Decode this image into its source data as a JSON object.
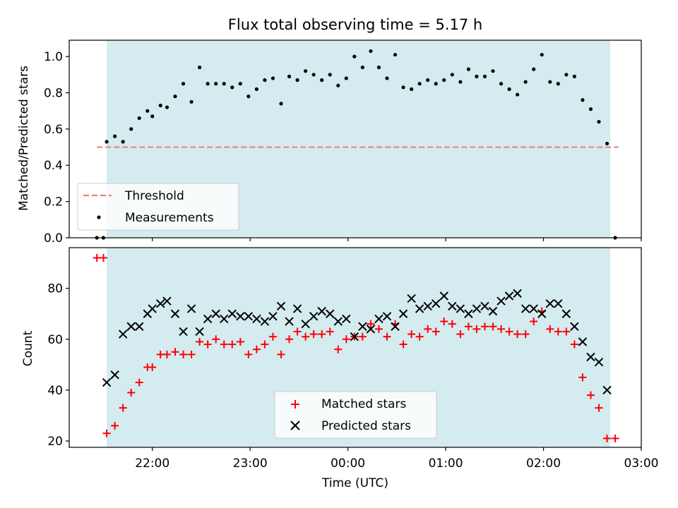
{
  "colors": {
    "band": "#b7dde6",
    "threshold": "#f08080",
    "matched": "#ff0000",
    "predicted": "#000000",
    "measurements": "#000000"
  },
  "chart_data": [
    {
      "type": "scatter",
      "title": "Flux total observing time = 5.17 h",
      "xlabel": "",
      "ylabel": "Matched/Predicted stars",
      "ylim": [
        0.0,
        1.09
      ],
      "yticks": [
        "0.0",
        "0.2",
        "0.4",
        "0.6",
        "0.8",
        "1.0"
      ],
      "xlim": [
        "21:09",
        "03:00"
      ],
      "xtick_labels": [],
      "shaded_band": [
        "21:32",
        "02:41"
      ],
      "legend": {
        "placement": "lower-left",
        "entries": [
          "Threshold",
          "Measurements"
        ]
      },
      "threshold": {
        "name": "Threshold",
        "y": 0.5,
        "x_start": "21:26",
        "x_end": "02:46"
      },
      "series": [
        {
          "name": "Measurements",
          "points": [
            [
              "21:26",
              0.0
            ],
            [
              "21:30",
              0.0
            ],
            [
              "21:32",
              0.53
            ],
            [
              "21:37",
              0.56
            ],
            [
              "21:42",
              0.53
            ],
            [
              "21:47",
              0.6
            ],
            [
              "21:52",
              0.66
            ],
            [
              "21:57",
              0.7
            ],
            [
              "22:00",
              0.67
            ],
            [
              "22:05",
              0.73
            ],
            [
              "22:09",
              0.72
            ],
            [
              "22:14",
              0.78
            ],
            [
              "22:19",
              0.85
            ],
            [
              "22:24",
              0.75
            ],
            [
              "22:29",
              0.94
            ],
            [
              "22:34",
              0.85
            ],
            [
              "22:39",
              0.85
            ],
            [
              "22:44",
              0.85
            ],
            [
              "22:49",
              0.83
            ],
            [
              "22:54",
              0.85
            ],
            [
              "22:59",
              0.78
            ],
            [
              "23:04",
              0.82
            ],
            [
              "23:09",
              0.87
            ],
            [
              "23:14",
              0.88
            ],
            [
              "23:19",
              0.74
            ],
            [
              "23:24",
              0.89
            ],
            [
              "23:29",
              0.87
            ],
            [
              "23:34",
              0.92
            ],
            [
              "23:39",
              0.9
            ],
            [
              "23:44",
              0.87
            ],
            [
              "23:49",
              0.9
            ],
            [
              "23:54",
              0.84
            ],
            [
              "23:59",
              0.88
            ],
            [
              "00:04",
              1.0
            ],
            [
              "00:09",
              0.94
            ],
            [
              "00:14",
              1.03
            ],
            [
              "00:19",
              0.94
            ],
            [
              "00:24",
              0.88
            ],
            [
              "00:29",
              1.01
            ],
            [
              "00:34",
              0.83
            ],
            [
              "00:39",
              0.82
            ],
            [
              "00:44",
              0.85
            ],
            [
              "00:49",
              0.87
            ],
            [
              "00:54",
              0.85
            ],
            [
              "00:59",
              0.87
            ],
            [
              "01:04",
              0.9
            ],
            [
              "01:09",
              0.86
            ],
            [
              "01:14",
              0.93
            ],
            [
              "01:19",
              0.89
            ],
            [
              "01:24",
              0.89
            ],
            [
              "01:29",
              0.92
            ],
            [
              "01:34",
              0.85
            ],
            [
              "01:39",
              0.82
            ],
            [
              "01:44",
              0.79
            ],
            [
              "01:49",
              0.86
            ],
            [
              "01:54",
              0.93
            ],
            [
              "01:59",
              1.01
            ],
            [
              "02:04",
              0.86
            ],
            [
              "02:09",
              0.85
            ],
            [
              "02:14",
              0.9
            ],
            [
              "02:19",
              0.89
            ],
            [
              "02:24",
              0.76
            ],
            [
              "02:29",
              0.71
            ],
            [
              "02:34",
              0.64
            ],
            [
              "02:39",
              0.52
            ],
            [
              "02:44",
              0.0
            ]
          ]
        }
      ]
    },
    {
      "type": "scatter",
      "title": "",
      "xlabel": "Time (UTC)",
      "ylabel": "Count",
      "ylim": [
        17.5,
        96
      ],
      "yticks": [
        "20",
        "40",
        "60",
        "80"
      ],
      "xlim": [
        "21:09",
        "03:00"
      ],
      "xtick_labels": [
        "22:00",
        "23:00",
        "00:00",
        "01:00",
        "02:00",
        "03:00"
      ],
      "shaded_band": [
        "21:32",
        "02:41"
      ],
      "legend": {
        "placement": "lower-center",
        "entries": [
          "Matched stars",
          "Predicted stars"
        ]
      },
      "series": [
        {
          "name": "Matched stars",
          "points": [
            [
              "21:26",
              92
            ],
            [
              "21:30",
              92
            ],
            [
              "21:32",
              23
            ],
            [
              "21:37",
              26
            ],
            [
              "21:42",
              33
            ],
            [
              "21:47",
              39
            ],
            [
              "21:52",
              43
            ],
            [
              "21:57",
              49
            ],
            [
              "22:00",
              49
            ],
            [
              "22:05",
              54
            ],
            [
              "22:09",
              54
            ],
            [
              "22:14",
              55
            ],
            [
              "22:19",
              54
            ],
            [
              "22:24",
              54
            ],
            [
              "22:29",
              59
            ],
            [
              "22:34",
              58
            ],
            [
              "22:39",
              60
            ],
            [
              "22:44",
              58
            ],
            [
              "22:49",
              58
            ],
            [
              "22:54",
              59
            ],
            [
              "22:59",
              54
            ],
            [
              "23:04",
              56
            ],
            [
              "23:09",
              58
            ],
            [
              "23:14",
              61
            ],
            [
              "23:19",
              54
            ],
            [
              "23:24",
              60
            ],
            [
              "23:29",
              63
            ],
            [
              "23:34",
              61
            ],
            [
              "23:39",
              62
            ],
            [
              "23:44",
              62
            ],
            [
              "23:49",
              63
            ],
            [
              "23:54",
              56
            ],
            [
              "23:59",
              60
            ],
            [
              "00:04",
              61
            ],
            [
              "00:09",
              61
            ],
            [
              "00:14",
              66
            ],
            [
              "00:19",
              64
            ],
            [
              "00:24",
              61
            ],
            [
              "00:29",
              66
            ],
            [
              "00:34",
              58
            ],
            [
              "00:39",
              62
            ],
            [
              "00:44",
              61
            ],
            [
              "00:49",
              64
            ],
            [
              "00:54",
              63
            ],
            [
              "00:59",
              67
            ],
            [
              "01:04",
              66
            ],
            [
              "01:09",
              62
            ],
            [
              "01:14",
              65
            ],
            [
              "01:19",
              64
            ],
            [
              "01:24",
              65
            ],
            [
              "01:29",
              65
            ],
            [
              "01:34",
              64
            ],
            [
              "01:39",
              63
            ],
            [
              "01:44",
              62
            ],
            [
              "01:49",
              62
            ],
            [
              "01:54",
              67
            ],
            [
              "01:59",
              71
            ],
            [
              "02:04",
              64
            ],
            [
              "02:09",
              63
            ],
            [
              "02:14",
              63
            ],
            [
              "02:19",
              58
            ],
            [
              "02:24",
              45
            ],
            [
              "02:29",
              38
            ],
            [
              "02:34",
              33
            ],
            [
              "02:39",
              21
            ],
            [
              "02:44",
              21
            ]
          ]
        },
        {
          "name": "Predicted stars",
          "points": [
            [
              "21:32",
              43
            ],
            [
              "21:37",
              46
            ],
            [
              "21:42",
              62
            ],
            [
              "21:47",
              65
            ],
            [
              "21:52",
              65
            ],
            [
              "21:57",
              70
            ],
            [
              "22:00",
              72
            ],
            [
              "22:05",
              74
            ],
            [
              "22:09",
              75
            ],
            [
              "22:14",
              70
            ],
            [
              "22:19",
              63
            ],
            [
              "22:24",
              72
            ],
            [
              "22:29",
              63
            ],
            [
              "22:34",
              68
            ],
            [
              "22:39",
              70
            ],
            [
              "22:44",
              68
            ],
            [
              "22:49",
              70
            ],
            [
              "22:54",
              69
            ],
            [
              "22:59",
              69
            ],
            [
              "23:04",
              68
            ],
            [
              "23:09",
              67
            ],
            [
              "23:14",
              69
            ],
            [
              "23:19",
              73
            ],
            [
              "23:24",
              67
            ],
            [
              "23:29",
              72
            ],
            [
              "23:34",
              66
            ],
            [
              "23:39",
              69
            ],
            [
              "23:44",
              71
            ],
            [
              "23:49",
              70
            ],
            [
              "23:54",
              67
            ],
            [
              "23:59",
              68
            ],
            [
              "00:04",
              61
            ],
            [
              "00:09",
              65
            ],
            [
              "00:14",
              64
            ],
            [
              "00:19",
              68
            ],
            [
              "00:24",
              69
            ],
            [
              "00:29",
              65
            ],
            [
              "00:34",
              70
            ],
            [
              "00:39",
              76
            ],
            [
              "00:44",
              72
            ],
            [
              "00:49",
              73
            ],
            [
              "00:54",
              74
            ],
            [
              "00:59",
              77
            ],
            [
              "01:04",
              73
            ],
            [
              "01:09",
              72
            ],
            [
              "01:14",
              70
            ],
            [
              "01:19",
              72
            ],
            [
              "01:24",
              73
            ],
            [
              "01:29",
              71
            ],
            [
              "01:34",
              75
            ],
            [
              "01:39",
              77
            ],
            [
              "01:44",
              78
            ],
            [
              "01:49",
              72
            ],
            [
              "01:54",
              72
            ],
            [
              "01:59",
              70
            ],
            [
              "02:04",
              74
            ],
            [
              "02:09",
              74
            ],
            [
              "02:14",
              70
            ],
            [
              "02:19",
              65
            ],
            [
              "02:24",
              59
            ],
            [
              "02:29",
              53
            ],
            [
              "02:34",
              51
            ],
            [
              "02:39",
              40
            ]
          ]
        }
      ]
    }
  ]
}
